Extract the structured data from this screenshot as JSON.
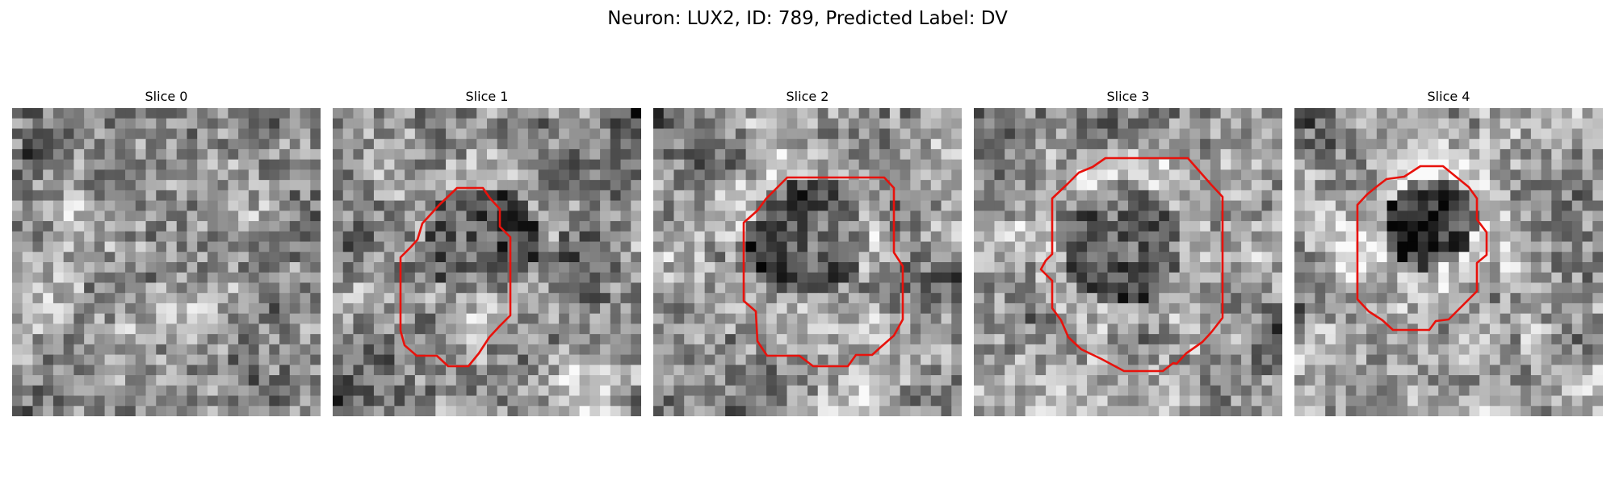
{
  "figure": {
    "title": "Neuron: LUX2, ID: 789, Predicted Label: DV",
    "grid_size": 30,
    "colormap": "gray",
    "outline_color": "#e8120c",
    "slices": [
      {
        "title": "Slice 0",
        "seed": 11,
        "background_level": 0.55,
        "blob_darkness": 0.0,
        "has_outline": false
      },
      {
        "title": "Slice 1",
        "seed": 23,
        "background_level": 0.55,
        "blob_darkness": 0.28,
        "has_outline": true
      },
      {
        "title": "Slice 2",
        "seed": 37,
        "background_level": 0.58,
        "blob_darkness": 0.3,
        "has_outline": true
      },
      {
        "title": "Slice 3",
        "seed": 53,
        "background_level": 0.6,
        "blob_darkness": 0.28,
        "has_outline": true
      },
      {
        "title": "Slice 4",
        "seed": 71,
        "background_level": 0.62,
        "blob_darkness": 0.42,
        "has_outline": true
      }
    ]
  }
}
